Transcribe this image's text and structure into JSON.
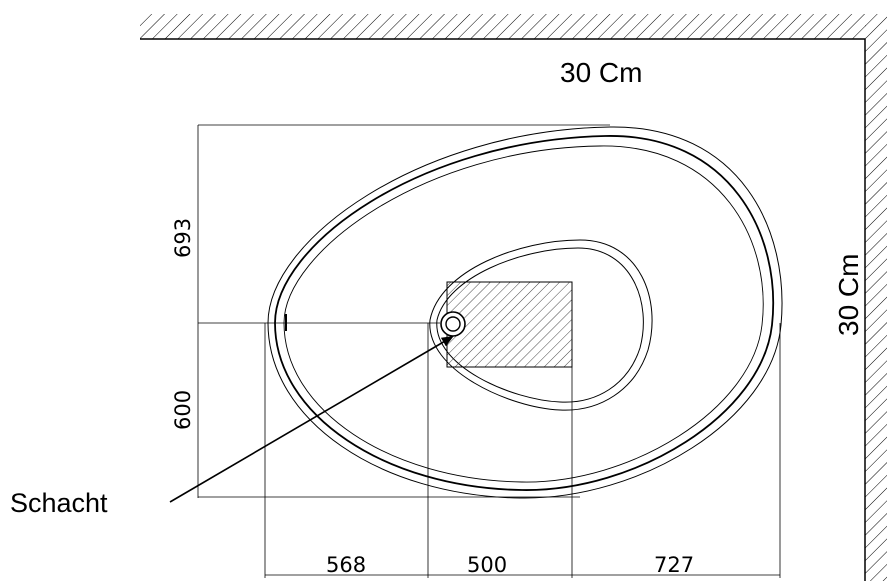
{
  "labels": {
    "top_clearance": "30 Cm",
    "right_clearance": "30 Cm",
    "drain_label": "Schacht"
  },
  "dimensions": {
    "vertical_upper": "693",
    "vertical_lower": "600",
    "horizontal_left": "568",
    "horizontal_middle": "500",
    "horizontal_right": "727"
  }
}
